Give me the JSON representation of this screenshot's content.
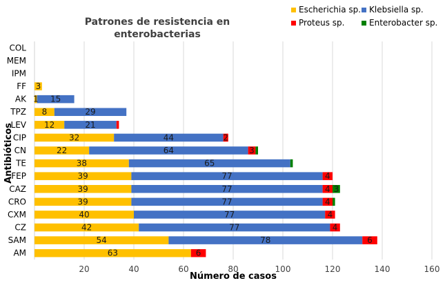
{
  "chart_data": {
    "type": "bar",
    "orientation": "horizontal",
    "stacked": true,
    "title_lines": [
      "Patrones de resistencia en",
      "enterobacterias"
    ],
    "xlabel": "Número de casos",
    "ylabel": "Antibióticos",
    "xlim": [
      0,
      160
    ],
    "xticks": [
      20,
      40,
      60,
      80,
      100,
      120,
      140,
      160
    ],
    "grid": true,
    "legend_position": "top-right",
    "categories": [
      "COL",
      "MEM",
      "IPM",
      "FF",
      "AK",
      "TPZ",
      "LEV",
      "CIP",
      "CN",
      "TE",
      "FEP",
      "CAZ",
      "CRO",
      "CXM",
      "CZ",
      "SAM",
      "AM"
    ],
    "series": [
      {
        "name": "Escherichia sp.",
        "color": "#FFC000",
        "label_color": "#1a1a1a",
        "values": [
          0,
          0,
          0,
          3,
          1,
          8,
          12,
          32,
          22,
          38,
          39,
          39,
          39,
          40,
          42,
          54,
          63
        ]
      },
      {
        "name": "Klebsiella sp.",
        "color": "#4472C4",
        "label_color": "#1a1a1a",
        "values": [
          0,
          0,
          0,
          0,
          15,
          29,
          21,
          44,
          64,
          65,
          77,
          77,
          77,
          77,
          77,
          78,
          0
        ]
      },
      {
        "name": "Proteus sp.",
        "color": "#FF0000",
        "label_color": "#7a0000",
        "values": [
          0,
          0,
          0,
          0,
          0,
          0,
          1,
          2,
          3,
          0,
          4,
          4,
          4,
          4,
          4,
          6,
          6
        ]
      },
      {
        "name": "Enterobacter sp.",
        "color": "#008000",
        "label_color": "#1a1a1a",
        "values": [
          0,
          0,
          0,
          0,
          0,
          0,
          0,
          0,
          1,
          1,
          0,
          3,
          1,
          0,
          0,
          0,
          0
        ]
      }
    ],
    "data_labels": [
      {
        "category": "FF",
        "series": "Escherichia sp.",
        "text": "3"
      },
      {
        "category": "AK",
        "series": "Escherichia sp.",
        "text": "1"
      },
      {
        "category": "AK",
        "series": "Klebsiella sp.",
        "text": "15"
      },
      {
        "category": "TPZ",
        "series": "Escherichia sp.",
        "text": "8"
      },
      {
        "category": "TPZ",
        "series": "Klebsiella sp.",
        "text": "29"
      },
      {
        "category": "LEV",
        "series": "Escherichia sp.",
        "text": "12"
      },
      {
        "category": "LEV",
        "series": "Klebsiella sp.",
        "text": "21"
      },
      {
        "category": "CIP",
        "series": "Escherichia sp.",
        "text": "32"
      },
      {
        "category": "CIP",
        "series": "Klebsiella sp.",
        "text": "44"
      },
      {
        "category": "CIP",
        "series": "Proteus sp.",
        "text": "2"
      },
      {
        "category": "CN",
        "series": "Escherichia sp.",
        "text": "22"
      },
      {
        "category": "CN",
        "series": "Klebsiella sp.",
        "text": "64"
      },
      {
        "category": "CN",
        "series": "Proteus sp.",
        "text": "3"
      },
      {
        "category": "TE",
        "series": "Escherichia sp.",
        "text": "38"
      },
      {
        "category": "TE",
        "series": "Klebsiella sp.",
        "text": "65"
      },
      {
        "category": "FEP",
        "series": "Escherichia sp.",
        "text": "39"
      },
      {
        "category": "FEP",
        "series": "Klebsiella sp.",
        "text": "77"
      },
      {
        "category": "FEP",
        "series": "Proteus sp.",
        "text": "4"
      },
      {
        "category": "CAZ",
        "series": "Escherichia sp.",
        "text": "39"
      },
      {
        "category": "CAZ",
        "series": "Klebsiella sp.",
        "text": "77"
      },
      {
        "category": "CAZ",
        "series": "Proteus sp.",
        "text": "4"
      },
      {
        "category": "CAZ",
        "series": "Enterobacter sp.",
        "text": "3"
      },
      {
        "category": "CRO",
        "series": "Escherichia sp.",
        "text": "39"
      },
      {
        "category": "CRO",
        "series": "Klebsiella sp.",
        "text": "77"
      },
      {
        "category": "CRO",
        "series": "Proteus sp.",
        "text": "4"
      },
      {
        "category": "CXM",
        "series": "Escherichia sp.",
        "text": "40"
      },
      {
        "category": "CXM",
        "series": "Klebsiella sp.",
        "text": "77"
      },
      {
        "category": "CXM",
        "series": "Proteus sp.",
        "text": "4"
      },
      {
        "category": "CZ",
        "series": "Escherichia sp.",
        "text": "42"
      },
      {
        "category": "CZ",
        "series": "Klebsiella sp.",
        "text": "77"
      },
      {
        "category": "CZ",
        "series": "Proteus sp.",
        "text": "4"
      },
      {
        "category": "SAM",
        "series": "Escherichia sp.",
        "text": "54"
      },
      {
        "category": "SAM",
        "series": "Klebsiella sp.",
        "text": "78"
      },
      {
        "category": "SAM",
        "series": "Proteus sp.",
        "text": "6"
      },
      {
        "category": "AM",
        "series": "Escherichia sp.",
        "text": "63"
      },
      {
        "category": "AM",
        "series": "Proteus sp.",
        "text": "6"
      }
    ]
  }
}
